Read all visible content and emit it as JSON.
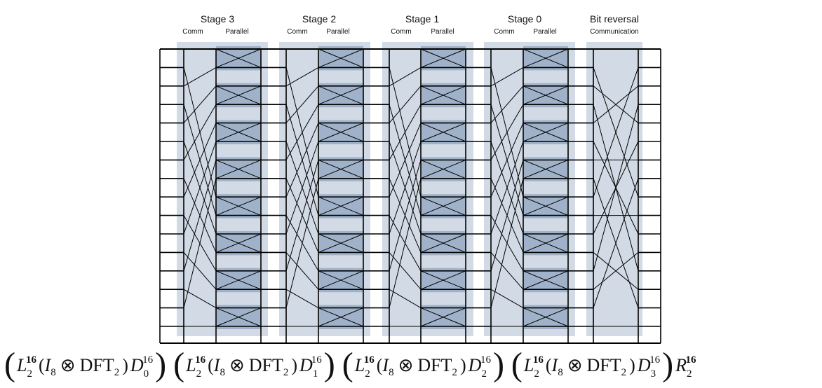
{
  "header": {
    "stages": [
      {
        "title": "Stage 3",
        "comm_label": "Comm",
        "parallel_label": "Parallel"
      },
      {
        "title": "Stage 2",
        "comm_label": "Comm",
        "parallel_label": "Parallel"
      },
      {
        "title": "Stage 1",
        "comm_label": "Comm",
        "parallel_label": "Parallel"
      },
      {
        "title": "Stage 0",
        "comm_label": "Comm",
        "parallel_label": "Parallel"
      }
    ],
    "bitrev": {
      "title": "Bit reversal",
      "sub_label": "Communication"
    }
  },
  "formula": {
    "L": "L",
    "L_sub": "2",
    "L_sup": "16",
    "I": "I",
    "I_sub": "8",
    "otimes": "⊗",
    "dft": "DFT",
    "dft_sub": "2",
    "D": "D",
    "D_sup": "16",
    "D_subs": [
      "0",
      "1",
      "2",
      "3"
    ],
    "R": "R",
    "R_sub": "2",
    "R_sup": "16"
  },
  "network": {
    "n_points": 16,
    "comm_kind": "stride permutation L_2^16",
    "bitrev_kind": "bit reversal permutation"
  },
  "colors": {
    "stage_bg": "#c9d4e0",
    "butterfly_block": "#9fb2c9",
    "line": "#000000"
  }
}
